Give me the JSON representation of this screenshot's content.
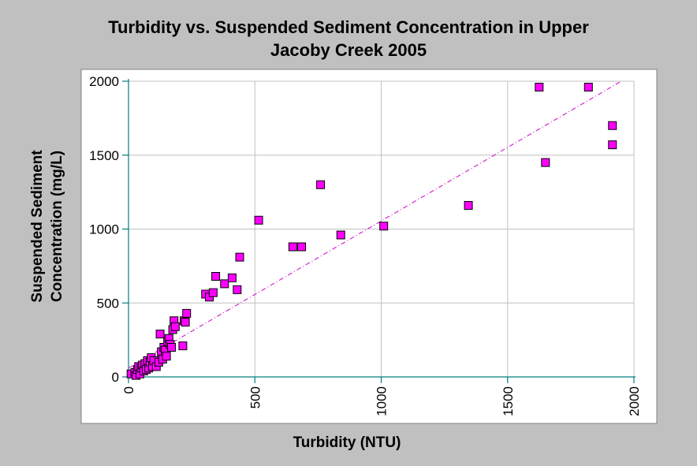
{
  "chart_data": {
    "type": "scatter",
    "title_line1": "Turbidity vs. Suspended Sediment Concentration in Upper",
    "title_line2": "Jacoby Creek 2005",
    "xlabel": "Turbidity (NTU)",
    "ylabel_line1": "Suspended Sediment",
    "ylabel_line2": "Concentration (mg/L)",
    "xlim": [
      0,
      2000
    ],
    "ylim": [
      0,
      2000
    ],
    "xticks": [
      0,
      500,
      1000,
      1500,
      2000
    ],
    "yticks": [
      0,
      500,
      1000,
      1500,
      2000
    ],
    "grid": true,
    "marker_color": "#ff00ff",
    "trendline_color": "#cc00cc",
    "trendline": {
      "x": [
        0,
        1950
      ],
      "y": [
        60,
        2000
      ]
    },
    "points": [
      {
        "x": 10,
        "y": 20
      },
      {
        "x": 25,
        "y": 30
      },
      {
        "x": 30,
        "y": 10
      },
      {
        "x": 35,
        "y": 50
      },
      {
        "x": 40,
        "y": 70
      },
      {
        "x": 45,
        "y": 20
      },
      {
        "x": 50,
        "y": 60
      },
      {
        "x": 55,
        "y": 80
      },
      {
        "x": 60,
        "y": 40
      },
      {
        "x": 65,
        "y": 90
      },
      {
        "x": 70,
        "y": 50
      },
      {
        "x": 75,
        "y": 110
      },
      {
        "x": 80,
        "y": 60
      },
      {
        "x": 85,
        "y": 100
      },
      {
        "x": 90,
        "y": 130
      },
      {
        "x": 95,
        "y": 70
      },
      {
        "x": 100,
        "y": 110
      },
      {
        "x": 110,
        "y": 70
      },
      {
        "x": 120,
        "y": 100
      },
      {
        "x": 125,
        "y": 290
      },
      {
        "x": 130,
        "y": 170
      },
      {
        "x": 135,
        "y": 120
      },
      {
        "x": 140,
        "y": 200
      },
      {
        "x": 145,
        "y": 180
      },
      {
        "x": 150,
        "y": 140
      },
      {
        "x": 155,
        "y": 240
      },
      {
        "x": 160,
        "y": 260
      },
      {
        "x": 165,
        "y": 220
      },
      {
        "x": 170,
        "y": 200
      },
      {
        "x": 175,
        "y": 320
      },
      {
        "x": 180,
        "y": 380
      },
      {
        "x": 185,
        "y": 340
      },
      {
        "x": 215,
        "y": 210
      },
      {
        "x": 220,
        "y": 380
      },
      {
        "x": 225,
        "y": 370
      },
      {
        "x": 230,
        "y": 430
      },
      {
        "x": 305,
        "y": 560
      },
      {
        "x": 320,
        "y": 540
      },
      {
        "x": 335,
        "y": 570
      },
      {
        "x": 345,
        "y": 680
      },
      {
        "x": 380,
        "y": 630
      },
      {
        "x": 410,
        "y": 670
      },
      {
        "x": 430,
        "y": 590
      },
      {
        "x": 440,
        "y": 810
      },
      {
        "x": 515,
        "y": 1060
      },
      {
        "x": 650,
        "y": 880
      },
      {
        "x": 685,
        "y": 880
      },
      {
        "x": 760,
        "y": 1300
      },
      {
        "x": 840,
        "y": 960
      },
      {
        "x": 1010,
        "y": 1020
      },
      {
        "x": 1345,
        "y": 1160
      },
      {
        "x": 1625,
        "y": 1960
      },
      {
        "x": 1650,
        "y": 1450
      },
      {
        "x": 1820,
        "y": 1960
      },
      {
        "x": 1915,
        "y": 1700
      },
      {
        "x": 1915,
        "y": 1570
      }
    ]
  }
}
